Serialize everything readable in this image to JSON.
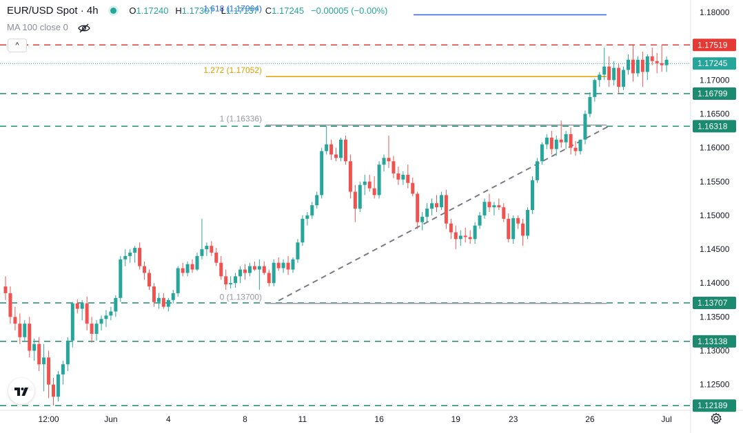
{
  "header": {
    "symbol": "EUR/USD Spot · 4h",
    "open_label": "O",
    "open": "1.17240",
    "high_label": "H",
    "high": "1.17307",
    "low_label": "L",
    "low": "1.17137",
    "close_label": "C",
    "close": "1.17245",
    "change": "−0.00005 (−0.00%)",
    "indicator": "MA 100 close 0",
    "collapse_glyph": "^"
  },
  "colors": {
    "up": "#26a69a",
    "down": "#ef5350",
    "red_line": "#e53935",
    "green_line": "#1b8a6f",
    "fib_orange": "#e0a000",
    "fib_gray": "#9598a1",
    "fib_blue": "#2962ff",
    "trend": "#787b86"
  },
  "icons": [
    "eye-crossed-icon",
    "tradingview-logo-icon",
    "settings-gear-icon"
  ],
  "chart_data": {
    "type": "candlestick",
    "timeframe": "4h",
    "y_ticks": [
      "1.18000",
      "1.17500",
      "1.17000",
      "1.16500",
      "1.16000",
      "1.15500",
      "1.15000",
      "1.14500",
      "1.14000",
      "1.13500",
      "1.13000",
      "1.12500"
    ],
    "x_ticks": [
      {
        "label": "12:00",
        "bar": 9
      },
      {
        "label": "Jun",
        "bar": 22
      },
      {
        "label": "4",
        "bar": 34
      },
      {
        "label": "8",
        "bar": 50
      },
      {
        "label": "11",
        "bar": 62
      },
      {
        "label": "16",
        "bar": 78
      },
      {
        "label": "19",
        "bar": 94
      },
      {
        "label": "23",
        "bar": 106
      },
      {
        "label": "26",
        "bar": 122
      },
      {
        "label": "Jul",
        "bar": 138
      }
    ],
    "price_labels": [
      {
        "text": "1.17519",
        "value": 1.17519,
        "kind": "red"
      },
      {
        "text": "1.17245",
        "value": 1.17245,
        "kind": "current"
      },
      {
        "text": "1.16799",
        "value": 1.16799,
        "kind": "green"
      },
      {
        "text": "1.16318",
        "value": 1.16318,
        "kind": "green"
      },
      {
        "text": "1.13707",
        "value": 1.13707,
        "kind": "green"
      },
      {
        "text": "1.13138",
        "value": 1.13138,
        "kind": "green"
      },
      {
        "text": "1.12189",
        "value": 1.12189,
        "kind": "green"
      }
    ],
    "fib_levels": [
      {
        "label": "1.618 (1.17964)",
        "value": 1.17964,
        "color": "blue"
      },
      {
        "label": "1.272 (1.17052)",
        "value": 1.17052,
        "color": "orange"
      },
      {
        "label": "1 (1.16336)",
        "value": 1.16336,
        "color": "gray"
      },
      {
        "label": "0 (1.13700)",
        "value": 1.137,
        "color": "gray"
      }
    ],
    "trendline": [
      {
        "bar": 57,
        "price": 1.1374
      },
      {
        "bar": 126,
        "price": 1.1632
      }
    ],
    "candles": [
      [
        1.1395,
        1.141,
        1.1375,
        1.1385
      ],
      [
        1.1385,
        1.1395,
        1.134,
        1.135
      ],
      [
        1.135,
        1.1365,
        1.133,
        1.134
      ],
      [
        1.134,
        1.1355,
        1.131,
        1.132
      ],
      [
        1.132,
        1.1345,
        1.1315,
        1.134
      ],
      [
        1.134,
        1.135,
        1.129,
        1.13
      ],
      [
        1.13,
        1.1318,
        1.1285,
        1.131
      ],
      [
        1.131,
        1.132,
        1.127,
        1.128
      ],
      [
        1.128,
        1.131,
        1.124,
        1.129
      ],
      [
        1.129,
        1.13,
        1.123,
        1.125
      ],
      [
        1.125,
        1.126,
        1.1219,
        1.1232
      ],
      [
        1.1232,
        1.127,
        1.1225,
        1.1265
      ],
      [
        1.1265,
        1.1285,
        1.125,
        1.128
      ],
      [
        1.128,
        1.132,
        1.127,
        1.1315
      ],
      [
        1.1315,
        1.1372,
        1.1305,
        1.137
      ],
      [
        1.137,
        1.1376,
        1.1355,
        1.1362
      ],
      [
        1.1362,
        1.1375,
        1.1345,
        1.137
      ],
      [
        1.137,
        1.138,
        1.133,
        1.134
      ],
      [
        1.134,
        1.135,
        1.1312,
        1.1325
      ],
      [
        1.1325,
        1.1345,
        1.1315,
        1.134
      ],
      [
        1.134,
        1.1352,
        1.133,
        1.1347
      ],
      [
        1.1347,
        1.136,
        1.1335,
        1.1352
      ],
      [
        1.1352,
        1.1365,
        1.1345,
        1.1358
      ],
      [
        1.1358,
        1.1382,
        1.135,
        1.1378
      ],
      [
        1.1378,
        1.144,
        1.1372,
        1.1435
      ],
      [
        1.1435,
        1.145,
        1.1425,
        1.144
      ],
      [
        1.144,
        1.145,
        1.143,
        1.1445
      ],
      [
        1.1445,
        1.1455,
        1.143,
        1.1452
      ],
      [
        1.1452,
        1.146,
        1.142,
        1.1425
      ],
      [
        1.1425,
        1.1432,
        1.1405,
        1.1415
      ],
      [
        1.1415,
        1.142,
        1.139,
        1.1395
      ],
      [
        1.1395,
        1.14,
        1.1365,
        1.1372
      ],
      [
        1.1372,
        1.1385,
        1.1362,
        1.1378
      ],
      [
        1.1378,
        1.1385,
        1.1362,
        1.1365
      ],
      [
        1.1365,
        1.1378,
        1.1358,
        1.1375
      ],
      [
        1.1375,
        1.139,
        1.137,
        1.1385
      ],
      [
        1.1385,
        1.1425,
        1.138,
        1.1422
      ],
      [
        1.1422,
        1.143,
        1.141,
        1.1415
      ],
      [
        1.1415,
        1.1432,
        1.141,
        1.1428
      ],
      [
        1.1428,
        1.1435,
        1.1415,
        1.142
      ],
      [
        1.142,
        1.1445,
        1.1418,
        1.144
      ],
      [
        1.144,
        1.1495,
        1.1435,
        1.145
      ],
      [
        1.145,
        1.146,
        1.144,
        1.1455
      ],
      [
        1.1455,
        1.1462,
        1.144,
        1.1445
      ],
      [
        1.1445,
        1.1452,
        1.1425,
        1.143
      ],
      [
        1.143,
        1.144,
        1.1405,
        1.141
      ],
      [
        1.141,
        1.142,
        1.139,
        1.1398
      ],
      [
        1.1398,
        1.141,
        1.1392,
        1.14
      ],
      [
        1.14,
        1.1415,
        1.1393,
        1.141
      ],
      [
        1.141,
        1.1425,
        1.14,
        1.142
      ],
      [
        1.142,
        1.1428,
        1.1405,
        1.1415
      ],
      [
        1.1415,
        1.143,
        1.141,
        1.1425
      ],
      [
        1.1425,
        1.1432,
        1.1418,
        1.142
      ],
      [
        1.142,
        1.1435,
        1.139,
        1.1425
      ],
      [
        1.1425,
        1.1432,
        1.1412,
        1.1415
      ],
      [
        1.1415,
        1.142,
        1.1395,
        1.14
      ],
      [
        1.14,
        1.1435,
        1.1395,
        1.143
      ],
      [
        1.143,
        1.1438,
        1.1418,
        1.1422
      ],
      [
        1.1422,
        1.1435,
        1.1415,
        1.143
      ],
      [
        1.143,
        1.144,
        1.1412,
        1.142
      ],
      [
        1.142,
        1.1438,
        1.1415,
        1.1435
      ],
      [
        1.1435,
        1.1465,
        1.143,
        1.146
      ],
      [
        1.146,
        1.15,
        1.1455,
        1.1495
      ],
      [
        1.1495,
        1.1505,
        1.1485,
        1.15
      ],
      [
        1.15,
        1.152,
        1.1495,
        1.1515
      ],
      [
        1.1515,
        1.1535,
        1.151,
        1.153
      ],
      [
        1.153,
        1.16,
        1.1525,
        1.1595
      ],
      [
        1.1595,
        1.1632,
        1.159,
        1.1605
      ],
      [
        1.1605,
        1.1612,
        1.1582,
        1.159
      ],
      [
        1.159,
        1.16,
        1.158,
        1.1585
      ],
      [
        1.1585,
        1.1615,
        1.158,
        1.1612
      ],
      [
        1.1612,
        1.1618,
        1.1575,
        1.158
      ],
      [
        1.158,
        1.159,
        1.1525,
        1.1535
      ],
      [
        1.1535,
        1.1545,
        1.149,
        1.151
      ],
      [
        1.151,
        1.155,
        1.1505,
        1.1545
      ],
      [
        1.1545,
        1.156,
        1.153,
        1.155
      ],
      [
        1.155,
        1.156,
        1.1535,
        1.154
      ],
      [
        1.154,
        1.1558,
        1.1525,
        1.153
      ],
      [
        1.153,
        1.158,
        1.1525,
        1.1575
      ],
      [
        1.1575,
        1.159,
        1.1565,
        1.1585
      ],
      [
        1.1585,
        1.1618,
        1.157,
        1.158
      ],
      [
        1.158,
        1.1588,
        1.1555,
        1.1562
      ],
      [
        1.1562,
        1.1572,
        1.1545,
        1.1553
      ],
      [
        1.1553,
        1.1565,
        1.1545,
        1.156
      ],
      [
        1.156,
        1.1575,
        1.154,
        1.1548
      ],
      [
        1.1548,
        1.1556,
        1.1528,
        1.1532
      ],
      [
        1.1532,
        1.1535,
        1.148,
        1.149
      ],
      [
        1.149,
        1.1505,
        1.1478,
        1.1498
      ],
      [
        1.1498,
        1.1518,
        1.149,
        1.151
      ],
      [
        1.151,
        1.1525,
        1.15,
        1.1518
      ],
      [
        1.1518,
        1.153,
        1.1505,
        1.1512
      ],
      [
        1.1512,
        1.1535,
        1.1508,
        1.153
      ],
      [
        1.153,
        1.1538,
        1.148,
        1.1488
      ],
      [
        1.1488,
        1.1495,
        1.1465,
        1.1475
      ],
      [
        1.1475,
        1.1485,
        1.145,
        1.1465
      ],
      [
        1.1465,
        1.1478,
        1.1455,
        1.147
      ],
      [
        1.147,
        1.1482,
        1.146,
        1.1468
      ],
      [
        1.1468,
        1.1478,
        1.1458,
        1.1465
      ],
      [
        1.1465,
        1.149,
        1.1458,
        1.1485
      ],
      [
        1.1485,
        1.1505,
        1.148,
        1.15
      ],
      [
        1.15,
        1.1525,
        1.1495,
        1.152
      ],
      [
        1.152,
        1.1532,
        1.1505,
        1.1512
      ],
      [
        1.1512,
        1.152,
        1.15,
        1.1515
      ],
      [
        1.1515,
        1.1525,
        1.1508,
        1.1512
      ],
      [
        1.1512,
        1.1518,
        1.149,
        1.1495
      ],
      [
        1.1495,
        1.1503,
        1.146,
        1.1465
      ],
      [
        1.1465,
        1.15,
        1.1458,
        1.1496
      ],
      [
        1.1496,
        1.15,
        1.148,
        1.1488
      ],
      [
        1.1488,
        1.1495,
        1.1455,
        1.147
      ],
      [
        1.147,
        1.1512,
        1.1465,
        1.1508
      ],
      [
        1.1508,
        1.1558,
        1.1502,
        1.1552
      ],
      [
        1.1552,
        1.1585,
        1.1548,
        1.158
      ],
      [
        1.158,
        1.1608,
        1.1575,
        1.1605
      ],
      [
        1.1605,
        1.162,
        1.1598,
        1.1615
      ],
      [
        1.1615,
        1.1625,
        1.159,
        1.1598
      ],
      [
        1.1598,
        1.1618,
        1.1588,
        1.1612
      ],
      [
        1.1612,
        1.164,
        1.16,
        1.1608
      ],
      [
        1.1608,
        1.1625,
        1.1598,
        1.162
      ],
      [
        1.162,
        1.163,
        1.159,
        1.16
      ],
      [
        1.16,
        1.161,
        1.1588,
        1.1595
      ],
      [
        1.1595,
        1.1612,
        1.159,
        1.1612
      ],
      [
        1.1612,
        1.1655,
        1.1605,
        1.165
      ],
      [
        1.165,
        1.1682,
        1.1645,
        1.1675
      ],
      [
        1.1675,
        1.1702,
        1.1668,
        1.17
      ],
      [
        1.17,
        1.1712,
        1.169,
        1.1708
      ],
      [
        1.1708,
        1.1748,
        1.17,
        1.172
      ],
      [
        1.172,
        1.1735,
        1.169,
        1.17
      ],
      [
        1.17,
        1.1728,
        1.1692,
        1.1718
      ],
      [
        1.1718,
        1.1725,
        1.168,
        1.169
      ],
      [
        1.169,
        1.172,
        1.1685,
        1.1715
      ],
      [
        1.1715,
        1.1738,
        1.1708,
        1.173
      ],
      [
        1.173,
        1.1752,
        1.1698,
        1.171
      ],
      [
        1.171,
        1.1735,
        1.1705,
        1.173
      ],
      [
        1.173,
        1.1742,
        1.169,
        1.1712
      ],
      [
        1.1712,
        1.1738,
        1.17,
        1.1735
      ],
      [
        1.1735,
        1.1748,
        1.1722,
        1.1728
      ],
      [
        1.1728,
        1.174,
        1.171,
        1.1725
      ],
      [
        1.1725,
        1.1752,
        1.1712,
        1.1722
      ],
      [
        1.1722,
        1.1735,
        1.1712,
        1.173
      ]
    ]
  }
}
